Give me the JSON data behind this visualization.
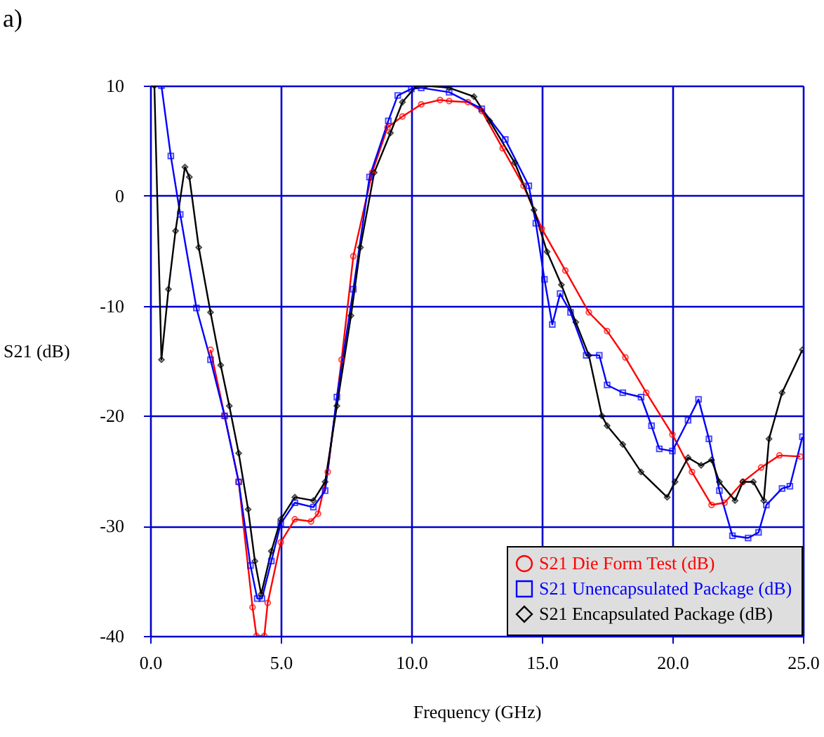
{
  "chart_data": {
    "type": "line",
    "title": "a)",
    "xlabel": "Frequency (GHz)",
    "ylabel": "S21 (dB)",
    "xlim": [
      0,
      25
    ],
    "ylim": [
      -40,
      10
    ],
    "xticks": [
      {
        "value": 0,
        "label": "0.0"
      },
      {
        "value": 5,
        "label": "5.0"
      },
      {
        "value": 10,
        "label": "10.0"
      },
      {
        "value": 15,
        "label": "15.0"
      },
      {
        "value": 20,
        "label": "20.0"
      },
      {
        "value": 25,
        "label": "25.0"
      }
    ],
    "yticks": [
      10,
      0,
      -10,
      -20,
      -30,
      -40
    ],
    "grid": true,
    "legend": "bottom right",
    "line_style": "solid",
    "series": [
      {
        "name": "S21 Die Form Test (dB)",
        "color": "#ff0000",
        "marker": "circle",
        "x": [
          2.31,
          2.85,
          3.39,
          3.92,
          4.07,
          4.37,
          4.5,
          5.0,
          5.54,
          6.16,
          6.43,
          6.8,
          7.33,
          7.78,
          8.5,
          9.09,
          9.66,
          10.38,
          11.1,
          11.45,
          12.17,
          12.7,
          13.5,
          14.3,
          15.0,
          15.9,
          16.8,
          17.5,
          18.2,
          19.0,
          20.0,
          20.75,
          21.5,
          22.0,
          22.7,
          23.4,
          24.1,
          24.9
        ],
        "values": [
          -14.0,
          -20,
          -26,
          -37.4,
          -40,
          -40,
          -37.0,
          -31.5,
          -29.4,
          -29.6,
          -28.9,
          -25.1,
          -14.9,
          -5.5,
          2.1,
          6.2,
          7.2,
          8.3,
          8.7,
          8.6,
          8.5,
          7.7,
          4.3,
          0.9,
          -3.0,
          -6.8,
          -10.6,
          -12.3,
          -14.7,
          -17.9,
          -21.7,
          -25.1,
          -28.1,
          -27.9,
          -26.0,
          -24.7,
          -23.6,
          -23.7
        ]
      },
      {
        "name": "S21 Unencapsulated Package (dB)",
        "color": "#0000ff",
        "marker": "square",
        "x": [
          0.43,
          0.79,
          1.15,
          1.77,
          2.31,
          2.85,
          3.39,
          3.84,
          4.1,
          4.28,
          4.64,
          5.0,
          5.54,
          6.25,
          6.7,
          7.15,
          7.78,
          8.4,
          9.12,
          9.48,
          10.0,
          10.38,
          11.45,
          12.7,
          13.6,
          14.5,
          14.77,
          15.1,
          15.4,
          15.7,
          16.1,
          16.7,
          17.2,
          17.5,
          18.1,
          18.8,
          19.2,
          19.5,
          20.0,
          20.6,
          21.0,
          21.4,
          21.8,
          22.3,
          22.9,
          23.3,
          23.6,
          24.2,
          24.5,
          24.98
        ],
        "values": [
          10,
          3.6,
          -1.7,
          -10.2,
          -14.9,
          -20,
          -26,
          -33.6,
          -36.6,
          -36.6,
          -33.2,
          -29.8,
          -27.9,
          -28.3,
          -26.8,
          -18.3,
          -8.5,
          1.7,
          6.8,
          9.1,
          9.7,
          9.8,
          9.4,
          7.9,
          5.1,
          0.9,
          -2.5,
          -7.6,
          -11.7,
          -8.9,
          -10.6,
          -14.5,
          -14.5,
          -17.2,
          -17.9,
          -18.3,
          -20.9,
          -23.0,
          -23.2,
          -20.4,
          -18.5,
          -22.1,
          -26.8,
          -30.9,
          -31.1,
          -30.6,
          -28.1,
          -26.6,
          -26.4,
          -21.9
        ]
      },
      {
        "name": "S21 Encapsulated Package (dB)",
        "color": "#000000",
        "marker": "diamond",
        "x": [
          0.16,
          0.43,
          0.7,
          0.97,
          1.33,
          1.5,
          1.86,
          2.31,
          2.7,
          3.03,
          3.39,
          3.75,
          4.01,
          4.25,
          4.64,
          5.0,
          5.54,
          6.25,
          6.7,
          7.15,
          7.69,
          8.05,
          8.58,
          9.2,
          9.66,
          10.2,
          10.55,
          11.45,
          12.4,
          13.0,
          13.96,
          14.7,
          15.2,
          15.75,
          16.3,
          16.8,
          17.3,
          17.5,
          18.1,
          18.8,
          19.8,
          20.1,
          20.6,
          21.1,
          21.5,
          21.8,
          22.4,
          22.7,
          23.1,
          23.5,
          23.7,
          24.2,
          24.98
        ],
        "values": [
          10,
          -14.9,
          -8.5,
          -3.2,
          2.6,
          1.7,
          -4.7,
          -10.6,
          -15.4,
          -19.1,
          -23.4,
          -28.5,
          -33.2,
          -36.2,
          -32.3,
          -29.4,
          -27.4,
          -27.7,
          -26.0,
          -19.1,
          -10.9,
          -4.7,
          2.1,
          5.7,
          8.5,
          10,
          10,
          9.8,
          9.0,
          6.8,
          3.0,
          -1.3,
          -5.1,
          -8.1,
          -11.5,
          -14.5,
          -20,
          -20.9,
          -22.6,
          -25.1,
          -27.4,
          -26.0,
          -23.8,
          -24.5,
          -24.0,
          -26.0,
          -27.7,
          -26.0,
          -26.0,
          -27.7,
          -22.1,
          -17.9,
          -14.0
        ]
      }
    ]
  }
}
